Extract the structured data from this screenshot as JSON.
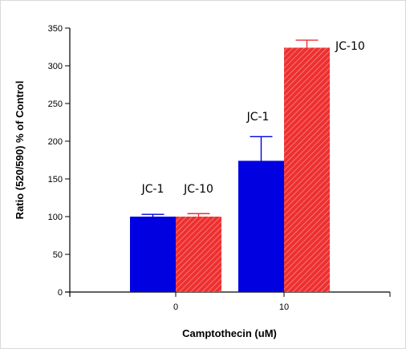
{
  "chart_data": {
    "type": "bar",
    "xlabel": "Camptothecin (uM)",
    "ylabel": "Ratio (520/590) % of Control",
    "ylim": [
      0,
      350
    ],
    "yticks": [
      0,
      50,
      100,
      150,
      200,
      250,
      300,
      350
    ],
    "categories": [
      "0",
      "10"
    ],
    "series": [
      {
        "name": "JC-1",
        "color": "#0000e0",
        "fill": "solid",
        "values": [
          100,
          174
        ],
        "error": [
          3,
          32
        ],
        "labels": [
          "JC-1",
          "JC-1"
        ]
      },
      {
        "name": "JC-10",
        "color": "#ee3030",
        "fill": "hatched",
        "values": [
          100,
          324
        ],
        "error": [
          4,
          10
        ],
        "labels": [
          "JC-10",
          "JC-10"
        ]
      }
    ],
    "grid": false,
    "legend": "none"
  }
}
